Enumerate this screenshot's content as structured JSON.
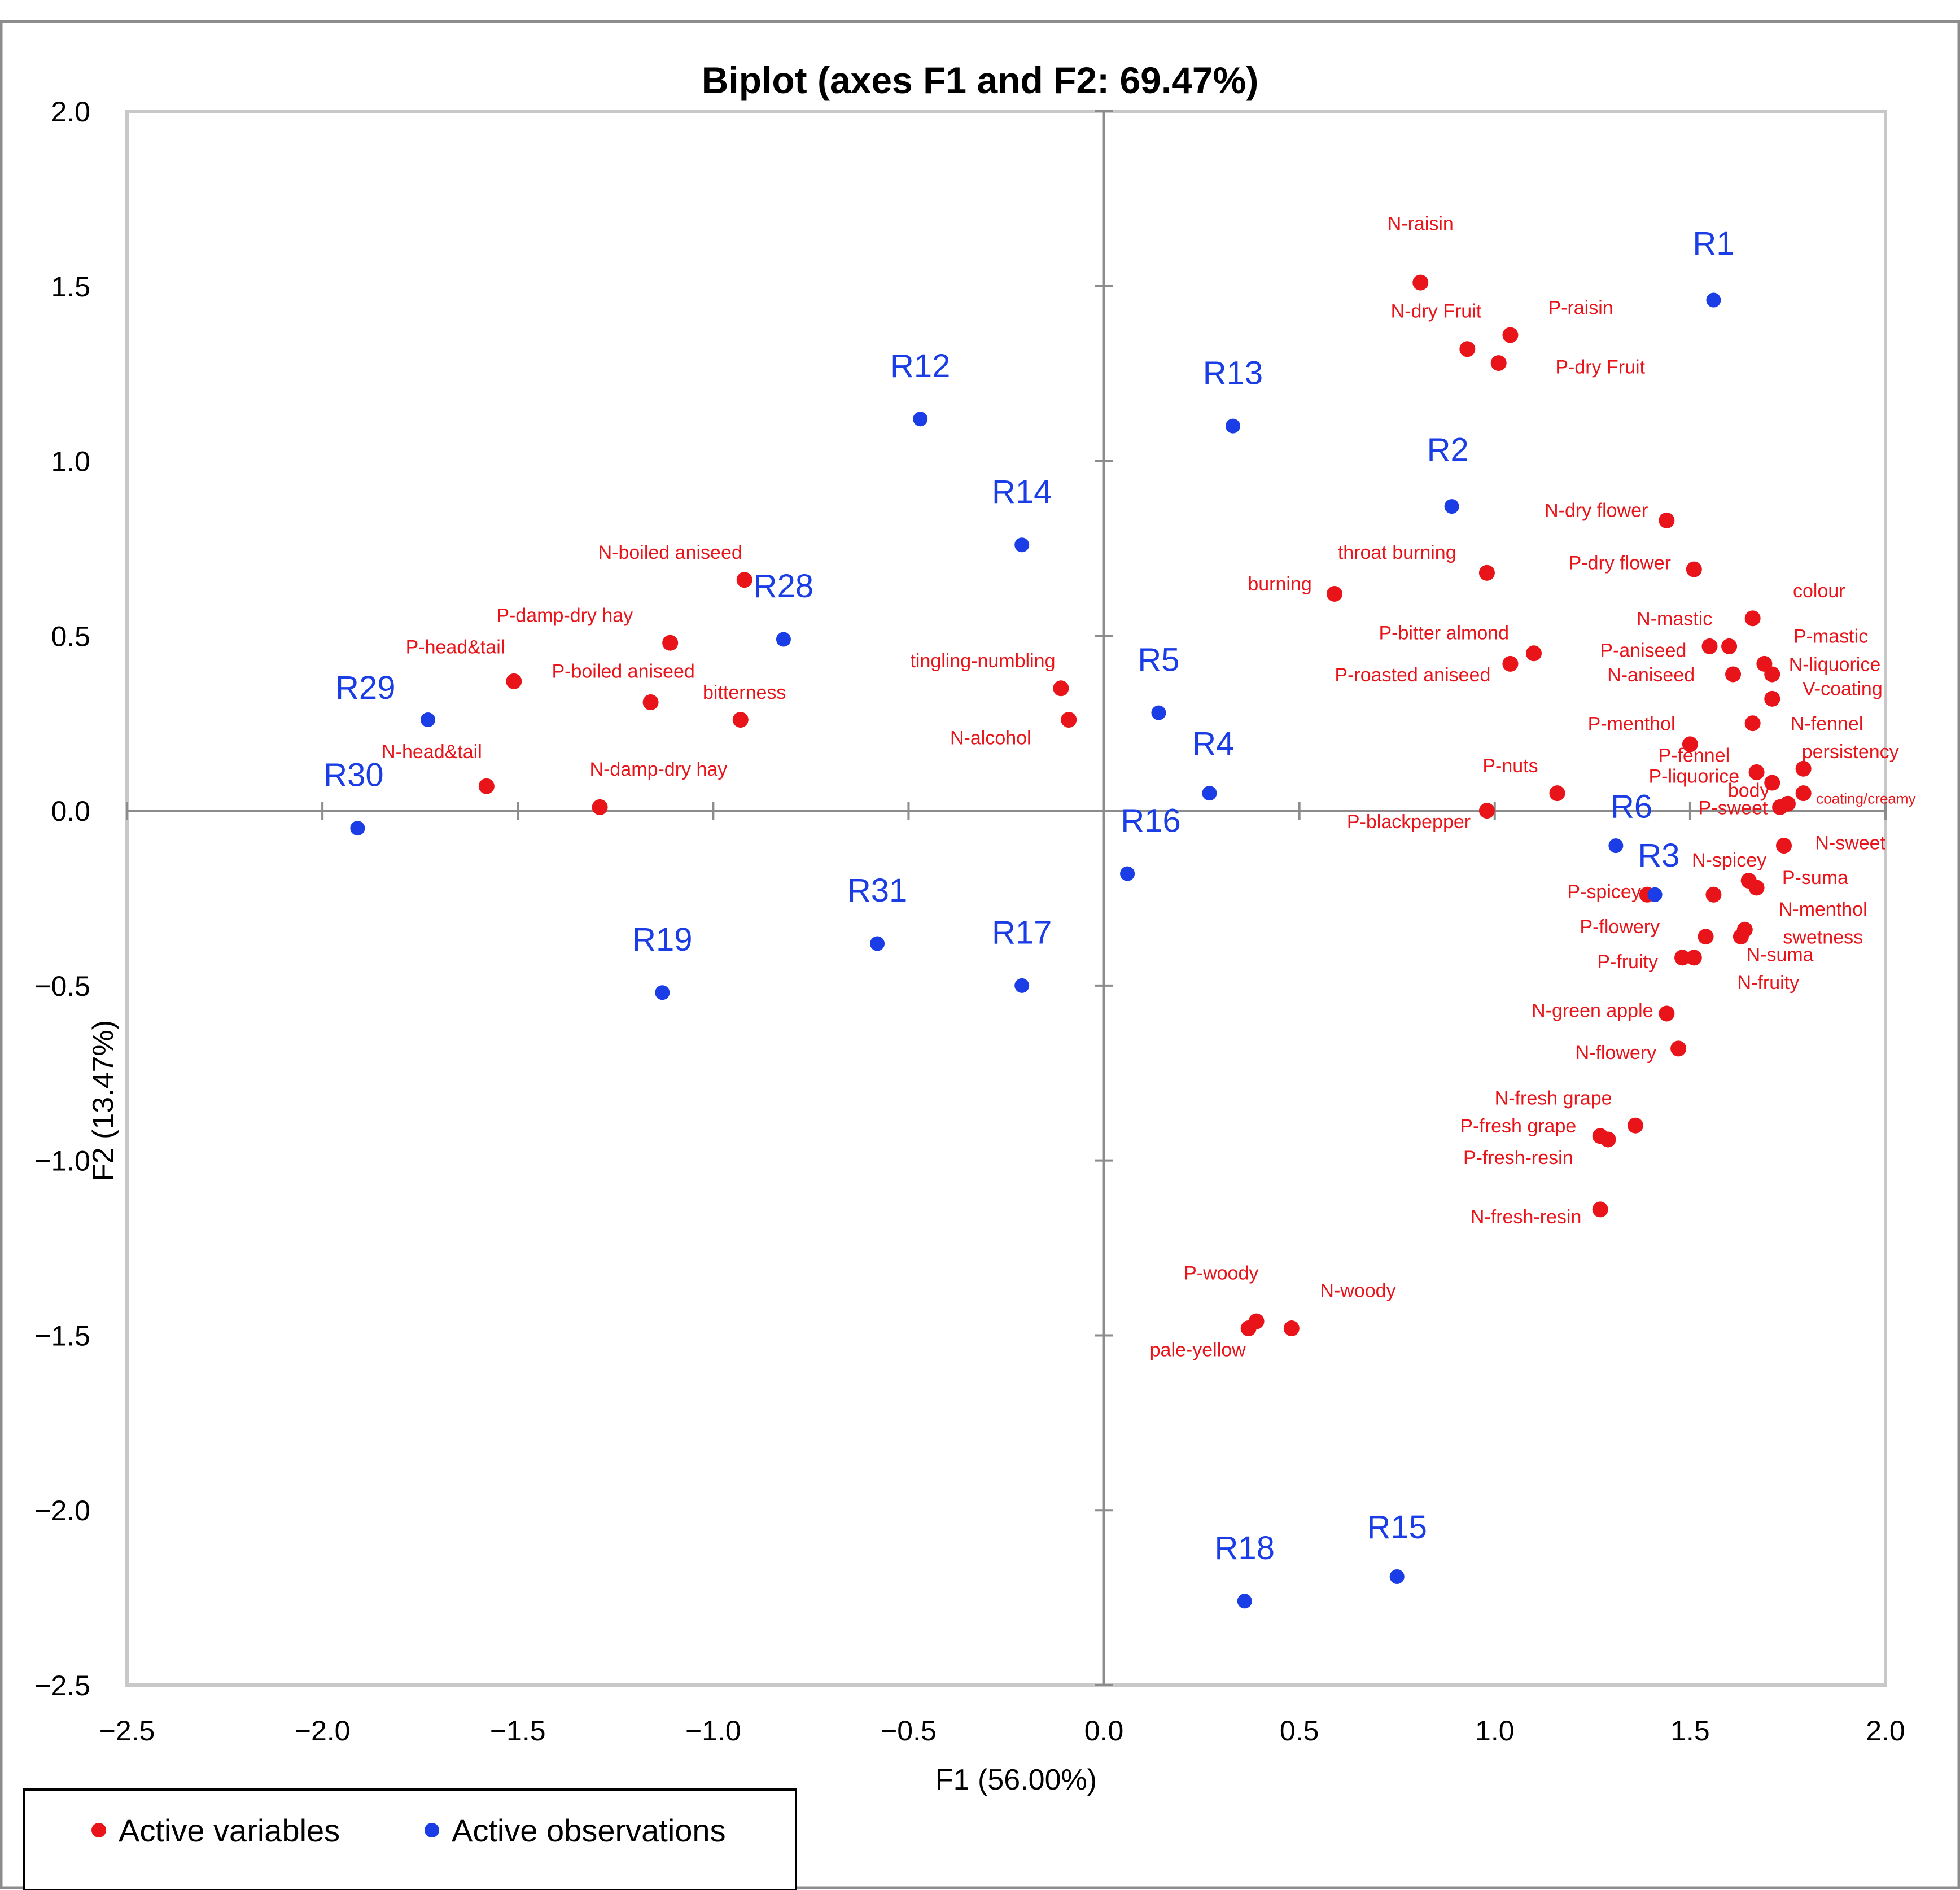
{
  "chart_data": {
    "type": "scatter",
    "title": "Biplot (axes F1 and F2: 69.47%)",
    "xlabel": "F1 (56.00%)",
    "ylabel": "F2 (13.47%)",
    "xlim": [
      -2.5,
      2.0
    ],
    "ylim": [
      -2.5,
      2.0
    ],
    "x_ticks": [
      {
        "v": -2.5,
        "label": "−2.5"
      },
      {
        "v": -2.0,
        "label": "−2.0"
      },
      {
        "v": -1.5,
        "label": "−1.5"
      },
      {
        "v": -1.0,
        "label": "−1.0"
      },
      {
        "v": -0.5,
        "label": "−0.5"
      },
      {
        "v": 0.0,
        "label": "0.0"
      },
      {
        "v": 0.5,
        "label": "0.5"
      },
      {
        "v": 1.0,
        "label": "1.0"
      },
      {
        "v": 1.5,
        "label": "1.5"
      },
      {
        "v": 2.0,
        "label": "2.0"
      }
    ],
    "y_ticks": [
      {
        "v": 2.0,
        "label": "2.0"
      },
      {
        "v": 1.5,
        "label": "1.5"
      },
      {
        "v": 1.0,
        "label": "1.0"
      },
      {
        "v": 0.5,
        "label": "0.5"
      },
      {
        "v": 0.0,
        "label": "0.0"
      },
      {
        "v": -0.5,
        "label": "−0.5"
      },
      {
        "v": -1.0,
        "label": "−1.0"
      },
      {
        "v": -1.5,
        "label": "−1.5"
      },
      {
        "v": -2.0,
        "label": "−2.0"
      },
      {
        "v": -2.5,
        "label": "−2.5"
      }
    ],
    "legend": [
      {
        "name": "Active variables",
        "color": "#e8141a"
      },
      {
        "name": "Active observations",
        "color": "#1a3de6"
      }
    ],
    "legend_position": "bottom-left",
    "series": [
      {
        "name": "Active variables",
        "color": "#e8141a",
        "points": [
          {
            "label": "N-raisin",
            "x": 0.81,
            "y": 1.51,
            "lx": 0.81,
            "ly": 1.66
          },
          {
            "label": "P-raisin",
            "x": 1.04,
            "y": 1.36,
            "lx": 1.22,
            "ly": 1.42
          },
          {
            "label": "N-dry Fruit",
            "x": 0.93,
            "y": 1.32,
            "lx": 0.85,
            "ly": 1.41
          },
          {
            "label": "P-dry Fruit",
            "x": 1.01,
            "y": 1.28,
            "lx": 1.27,
            "ly": 1.25
          },
          {
            "label": "N-dry flower",
            "x": 1.44,
            "y": 0.83,
            "lx": 1.26,
            "ly": 0.84
          },
          {
            "label": "P-dry flower",
            "x": 1.51,
            "y": 0.69,
            "lx": 1.32,
            "ly": 0.69
          },
          {
            "label": "throat burning",
            "x": 0.98,
            "y": 0.68,
            "lx": 0.75,
            "ly": 0.72
          },
          {
            "label": "burning",
            "x": 0.59,
            "y": 0.62,
            "lx": 0.45,
            "ly": 0.63
          },
          {
            "label": "colour",
            "x": 1.66,
            "y": 0.55,
            "lx": 1.83,
            "ly": 0.61
          },
          {
            "label": "N-mastic",
            "x": 1.55,
            "y": 0.47,
            "lx": 1.46,
            "ly": 0.53
          },
          {
            "label": "P-mastic",
            "x": 1.6,
            "y": 0.47,
            "lx": 1.86,
            "ly": 0.48
          },
          {
            "label": "P-bitter almond",
            "x": 1.1,
            "y": 0.45,
            "lx": 0.87,
            "ly": 0.49
          },
          {
            "label": "P-aniseed",
            "x": 1.69,
            "y": 0.42,
            "lx": 1.38,
            "ly": 0.44
          },
          {
            "label": "N-liquorice",
            "x": 1.71,
            "y": 0.39,
            "lx": 1.87,
            "ly": 0.4
          },
          {
            "label": "P-roasted aniseed",
            "x": 1.04,
            "y": 0.42,
            "lx": 0.79,
            "ly": 0.37
          },
          {
            "label": "N-aniseed",
            "x": 1.61,
            "y": 0.39,
            "lx": 1.4,
            "ly": 0.37
          },
          {
            "label": "V-coating",
            "x": 1.71,
            "y": 0.32,
            "lx": 1.89,
            "ly": 0.33
          },
          {
            "label": "N-fennel",
            "x": 1.66,
            "y": 0.25,
            "lx": 1.85,
            "ly": 0.23
          },
          {
            "label": "P-menthol",
            "x": 1.5,
            "y": 0.19,
            "lx": 1.35,
            "ly": 0.23
          },
          {
            "label": "persistency",
            "x": 1.79,
            "y": 0.12,
            "lx": 1.91,
            "ly": 0.15
          },
          {
            "label": "P-fennel",
            "x": 1.67,
            "y": 0.11,
            "lx": 1.51,
            "ly": 0.14
          },
          {
            "label": "P-nuts",
            "x": 1.16,
            "y": 0.05,
            "lx": 1.04,
            "ly": 0.11
          },
          {
            "label": "P-liquorice",
            "x": 1.71,
            "y": 0.08,
            "lx": 1.51,
            "ly": 0.08
          },
          {
            "label": "body",
            "x": 1.75,
            "y": 0.02,
            "lx": 1.65,
            "ly": 0.04
          },
          {
            "label": "coating/creamy",
            "x": 1.79,
            "y": 0.05,
            "lx": 1.95,
            "ly": 0.02
          },
          {
            "label": "P-sweet",
            "x": 1.73,
            "y": 0.01,
            "lx": 1.61,
            "ly": -0.01
          },
          {
            "label": "P-blackpepper",
            "x": 0.98,
            "y": 0.0,
            "lx": 0.78,
            "ly": -0.05
          },
          {
            "label": "N-sweet",
            "x": 1.74,
            "y": -0.1,
            "lx": 1.91,
            "ly": -0.11
          },
          {
            "label": "N-spicey",
            "x": 1.56,
            "y": -0.24,
            "lx": 1.6,
            "ly": -0.16
          },
          {
            "label": "P-suma",
            "x": 1.65,
            "y": -0.2,
            "lx": 1.82,
            "ly": -0.21
          },
          {
            "label": "P-spicey",
            "x": 1.39,
            "y": -0.24,
            "lx": 1.28,
            "ly": -0.25
          },
          {
            "label": "N-menthol",
            "x": 1.67,
            "y": -0.22,
            "lx": 1.84,
            "ly": -0.3
          },
          {
            "label": "P-flowery",
            "x": 1.54,
            "y": -0.36,
            "lx": 1.32,
            "ly": -0.35
          },
          {
            "label": "swetness",
            "x": 1.64,
            "y": -0.34,
            "lx": 1.84,
            "ly": -0.38
          },
          {
            "label": "N-suma",
            "x": 1.63,
            "y": -0.36,
            "lx": 1.73,
            "ly": -0.43
          },
          {
            "label": "P-fruity",
            "x": 1.48,
            "y": -0.42,
            "lx": 1.34,
            "ly": -0.45
          },
          {
            "label": "N-fruity",
            "x": 1.51,
            "y": -0.42,
            "lx": 1.7,
            "ly": -0.51
          },
          {
            "label": "N-green apple",
            "x": 1.44,
            "y": -0.58,
            "lx": 1.25,
            "ly": -0.59
          },
          {
            "label": "N-flowery",
            "x": 1.47,
            "y": -0.68,
            "lx": 1.31,
            "ly": -0.71
          },
          {
            "label": "N-fresh grape",
            "x": 1.36,
            "y": -0.9,
            "lx": 1.15,
            "ly": -0.84
          },
          {
            "label": "P-fresh grape",
            "x": 1.27,
            "y": -0.93,
            "lx": 1.06,
            "ly": -0.92
          },
          {
            "label": "P-fresh-resin",
            "x": 1.29,
            "y": -0.94,
            "lx": 1.06,
            "ly": -1.01
          },
          {
            "label": "N-fresh-resin",
            "x": 1.27,
            "y": -1.14,
            "lx": 1.08,
            "ly": -1.18
          },
          {
            "label": "P-woody",
            "x": 0.39,
            "y": -1.46,
            "lx": 0.3,
            "ly": -1.34
          },
          {
            "label": "N-woody",
            "x": 0.48,
            "y": -1.48,
            "lx": 0.65,
            "ly": -1.39
          },
          {
            "label": "pale-yellow",
            "x": 0.37,
            "y": -1.48,
            "lx": 0.24,
            "ly": -1.56
          },
          {
            "label": "N-boiled aniseed",
            "x": -0.92,
            "y": 0.66,
            "lx": -1.11,
            "ly": 0.72
          },
          {
            "label": "P-damp-dry hay",
            "x": -1.11,
            "y": 0.48,
            "lx": -1.38,
            "ly": 0.54
          },
          {
            "label": "P-head&tail",
            "x": -1.51,
            "y": 0.37,
            "lx": -1.66,
            "ly": 0.45
          },
          {
            "label": "P-boiled aniseed",
            "x": -1.16,
            "y": 0.31,
            "lx": -1.23,
            "ly": 0.38
          },
          {
            "label": "bitterness",
            "x": -0.93,
            "y": 0.26,
            "lx": -0.92,
            "ly": 0.32
          },
          {
            "label": "N-head&tail",
            "x": -1.58,
            "y": 0.07,
            "lx": -1.72,
            "ly": 0.15
          },
          {
            "label": "N-damp-dry hay",
            "x": -1.29,
            "y": 0.01,
            "lx": -1.14,
            "ly": 0.1
          },
          {
            "label": "tingling-numbling",
            "x": -0.11,
            "y": 0.35,
            "lx": -0.31,
            "ly": 0.41
          },
          {
            "label": "N-alcohol",
            "x": -0.09,
            "y": 0.26,
            "lx": -0.29,
            "ly": 0.19
          }
        ]
      },
      {
        "name": "Active observations",
        "color": "#1a3de6",
        "points": [
          {
            "label": "R1",
            "x": 1.56,
            "y": 1.46,
            "lx": 1.56,
            "ly": 1.59
          },
          {
            "label": "R2",
            "x": 0.89,
            "y": 0.87,
            "lx": 0.88,
            "ly": 1.0
          },
          {
            "label": "R3",
            "x": 1.41,
            "y": -0.24,
            "lx": 1.42,
            "ly": -0.16
          },
          {
            "label": "R4",
            "x": 0.27,
            "y": 0.05,
            "lx": 0.28,
            "ly": 0.16
          },
          {
            "label": "R5",
            "x": 0.14,
            "y": 0.28,
            "lx": 0.14,
            "ly": 0.4
          },
          {
            "label": "R6",
            "x": 1.31,
            "y": -0.1,
            "lx": 1.35,
            "ly": -0.02
          },
          {
            "label": "R12",
            "x": -0.47,
            "y": 1.12,
            "lx": -0.47,
            "ly": 1.24
          },
          {
            "label": "R13",
            "x": 0.33,
            "y": 1.1,
            "lx": 0.33,
            "ly": 1.22
          },
          {
            "label": "R14",
            "x": -0.21,
            "y": 0.76,
            "lx": -0.21,
            "ly": 0.88
          },
          {
            "label": "R15",
            "x": 0.75,
            "y": -2.19,
            "lx": 0.75,
            "ly": -2.08
          },
          {
            "label": "R16",
            "x": 0.06,
            "y": -0.18,
            "lx": 0.12,
            "ly": -0.06
          },
          {
            "label": "R17",
            "x": -0.21,
            "y": -0.5,
            "lx": -0.21,
            "ly": -0.38
          },
          {
            "label": "R18",
            "x": 0.36,
            "y": -2.26,
            "lx": 0.36,
            "ly": -2.14
          },
          {
            "label": "R19",
            "x": -1.13,
            "y": -0.52,
            "lx": -1.13,
            "ly": -0.4
          },
          {
            "label": "R28",
            "x": -0.82,
            "y": 0.49,
            "lx": -0.82,
            "ly": 0.61
          },
          {
            "label": "R29",
            "x": -1.73,
            "y": 0.26,
            "lx": -1.89,
            "ly": 0.32
          },
          {
            "label": "R30",
            "x": -1.91,
            "y": -0.05,
            "lx": -1.92,
            "ly": 0.07
          },
          {
            "label": "R31",
            "x": -0.58,
            "y": -0.38,
            "lx": -0.58,
            "ly": -0.26
          }
        ]
      }
    ]
  }
}
